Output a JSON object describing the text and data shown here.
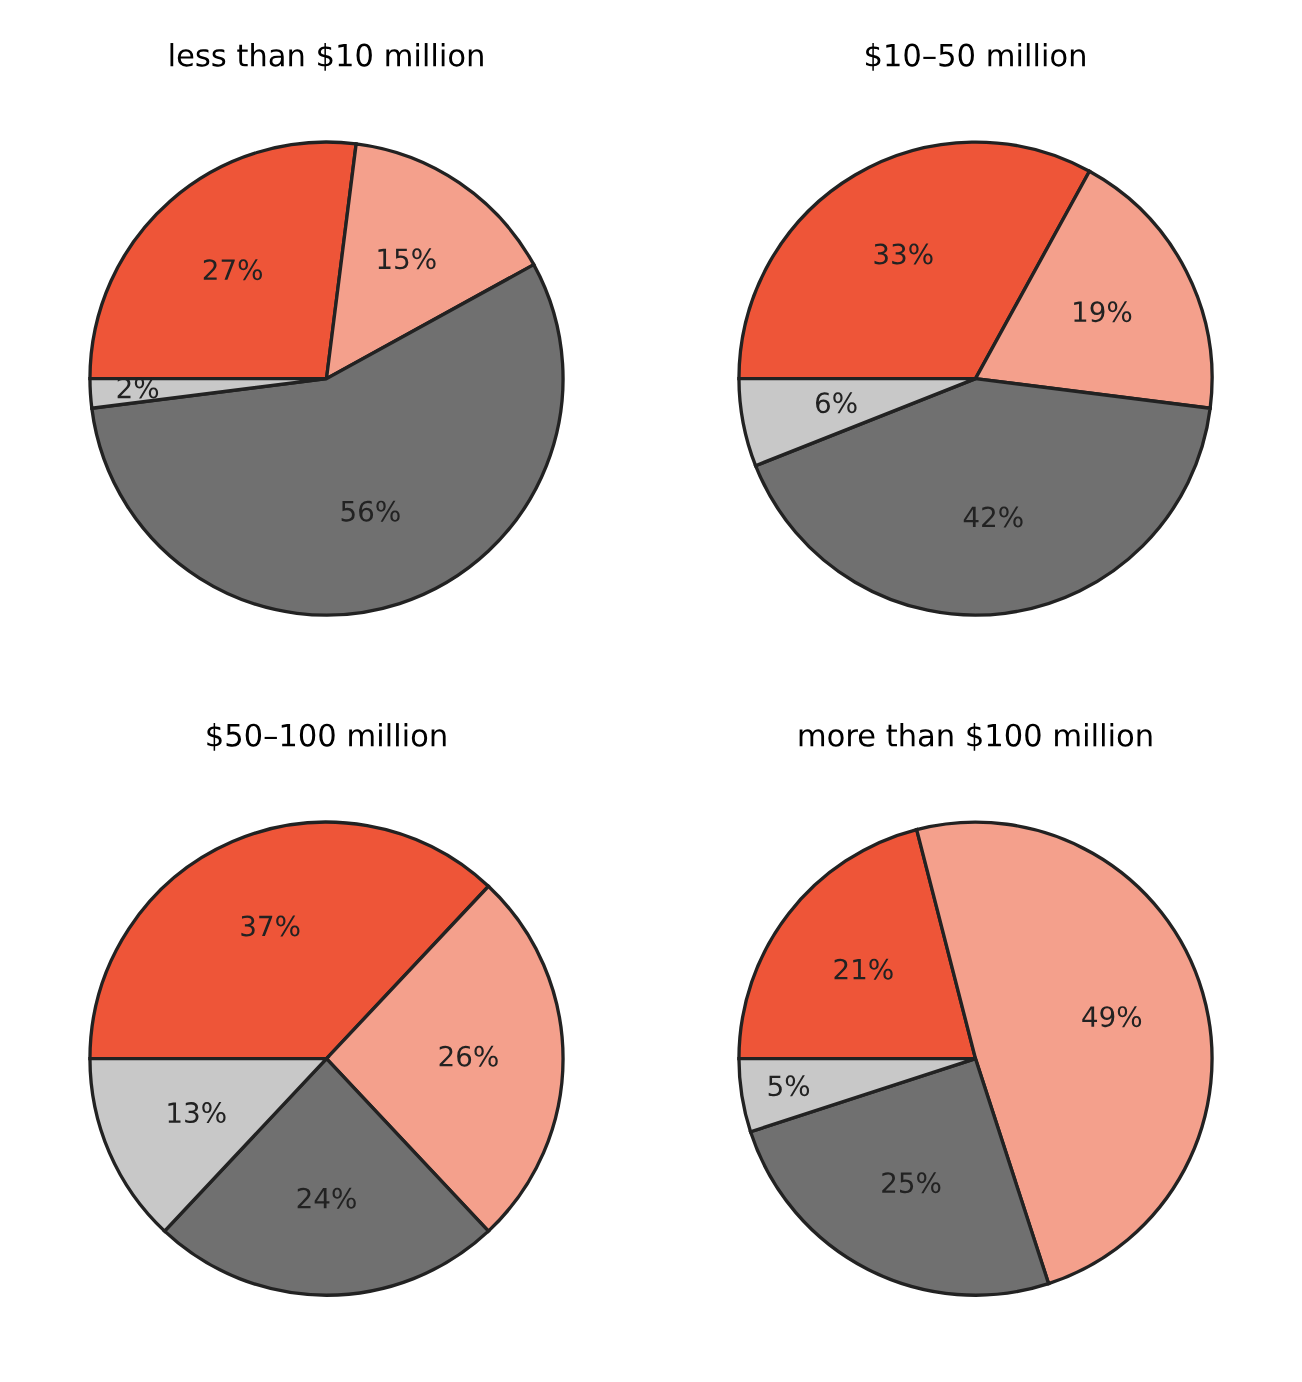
{
  "chart_data": [
    {
      "type": "pie",
      "title": "less than $10 million",
      "categories": [
        null,
        null,
        null,
        null
      ],
      "values": [
        27,
        15,
        56,
        2
      ],
      "value_labels": [
        "27%",
        "15%",
        "56%",
        "2%"
      ],
      "colors": [
        "#ee5538",
        "#f4a08c",
        "#707070",
        "#c8c8c8"
      ]
    },
    {
      "type": "pie",
      "title": "$10–50 million",
      "categories": [
        null,
        null,
        null,
        null
      ],
      "values": [
        33,
        19,
        42,
        6
      ],
      "value_labels": [
        "33%",
        "19%",
        "42%",
        "6%"
      ],
      "colors": [
        "#ee5538",
        "#f4a08c",
        "#707070",
        "#c8c8c8"
      ]
    },
    {
      "type": "pie",
      "title": "$50–100 million",
      "categories": [
        null,
        null,
        null,
        null
      ],
      "values": [
        37,
        26,
        24,
        13
      ],
      "value_labels": [
        "37%",
        "26%",
        "24%",
        "13%"
      ],
      "colors": [
        "#ee5538",
        "#f4a08c",
        "#707070",
        "#c8c8c8"
      ]
    },
    {
      "type": "pie",
      "title": "more than $100 million",
      "categories": [
        null,
        null,
        null,
        null
      ],
      "values": [
        21,
        49,
        25,
        5
      ],
      "value_labels": [
        "21%",
        "49%",
        "25%",
        "5%"
      ],
      "colors": [
        "#ee5538",
        "#f4a08c",
        "#707070",
        "#c8c8c8"
      ]
    }
  ]
}
